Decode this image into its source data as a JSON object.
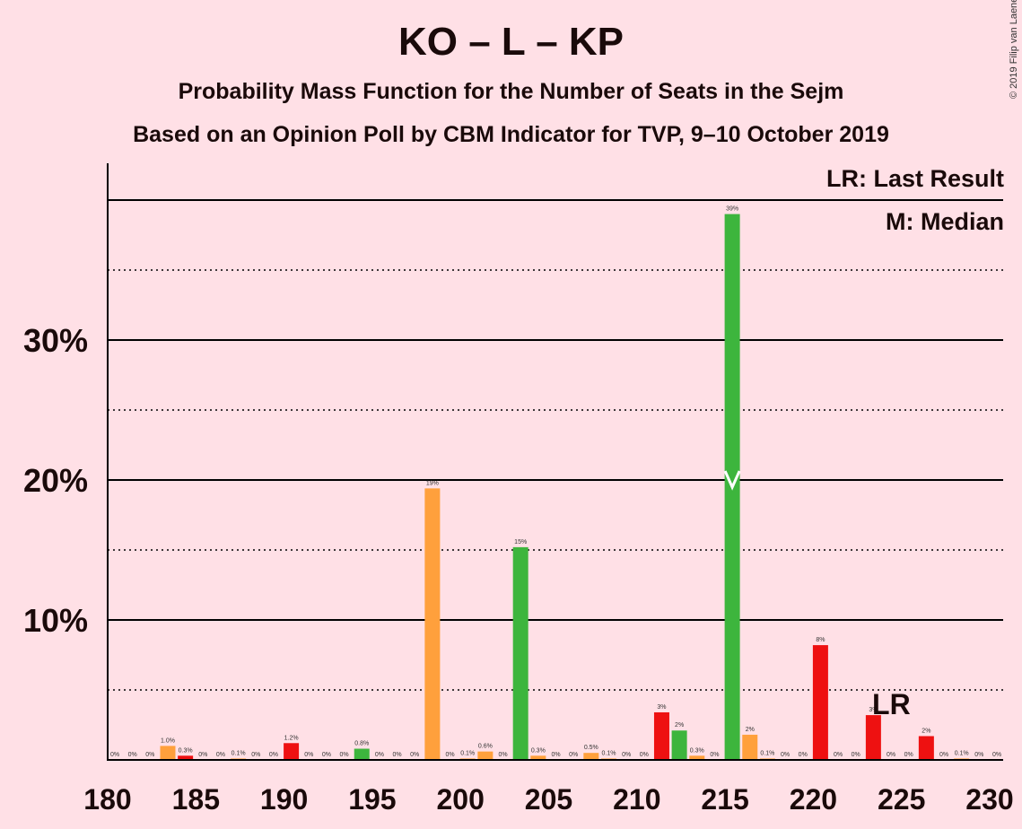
{
  "title": "KO – L – KP",
  "subtitle": "Probability Mass Function for the Number of Seats in the Sejm",
  "subtitle2": "Based on an Opinion Poll by CBM Indicator for TVP, 9–10 October 2019",
  "copyright": "© 2019 Filip van Laenen",
  "legend": {
    "last_result": "LR: Last Result",
    "median": "M: Median"
  },
  "markers": {
    "last_result_label": "LR",
    "last_result_seat": 223,
    "median_seat": 215
  },
  "colors": {
    "background": "#FFE0E6",
    "green": "#3DB53D",
    "orange": "#FFA03C",
    "red": "#EE1111",
    "axis": "#000000"
  },
  "chart_data": {
    "type": "bar",
    "title": "KO – L – KP",
    "xlabel": "",
    "ylabel": "",
    "xlim": [
      180,
      230
    ],
    "ylim": [
      0,
      42
    ],
    "y_ticks": [
      10,
      20,
      30
    ],
    "y_tick_labels": [
      "10%",
      "20%",
      "30%"
    ],
    "x_ticks": [
      180,
      185,
      190,
      195,
      200,
      205,
      210,
      215,
      220,
      225,
      230
    ],
    "x_tick_labels": [
      "180",
      "185",
      "190",
      "195",
      "200",
      "205",
      "210",
      "215",
      "220",
      "225",
      "230"
    ],
    "grid": "solid every 10%, dotted every 5%",
    "bars": [
      {
        "seat": 180,
        "value": 0,
        "label": "0%",
        "color": "orange"
      },
      {
        "seat": 181,
        "value": 0,
        "label": "0%",
        "color": "orange"
      },
      {
        "seat": 182,
        "value": 0,
        "label": "0%",
        "color": "orange"
      },
      {
        "seat": 183,
        "value": 1.0,
        "label": "1.0%",
        "color": "orange"
      },
      {
        "seat": 184,
        "value": 0.3,
        "label": "0.3%",
        "color": "red"
      },
      {
        "seat": 185,
        "value": 0,
        "label": "0%",
        "color": "orange"
      },
      {
        "seat": 186,
        "value": 0,
        "label": "0%",
        "color": "orange"
      },
      {
        "seat": 187,
        "value": 0.1,
        "label": "0.1%",
        "color": "orange"
      },
      {
        "seat": 188,
        "value": 0,
        "label": "0%",
        "color": "orange"
      },
      {
        "seat": 189,
        "value": 0,
        "label": "0%",
        "color": "orange"
      },
      {
        "seat": 190,
        "value": 1.2,
        "label": "1.2%",
        "color": "red"
      },
      {
        "seat": 191,
        "value": 0,
        "label": "0%",
        "color": "orange"
      },
      {
        "seat": 192,
        "value": 0,
        "label": "0%",
        "color": "orange"
      },
      {
        "seat": 193,
        "value": 0,
        "label": "0%",
        "color": "orange"
      },
      {
        "seat": 194,
        "value": 0.8,
        "label": "0.8%",
        "color": "green"
      },
      {
        "seat": 195,
        "value": 0,
        "label": "0%",
        "color": "orange"
      },
      {
        "seat": 196,
        "value": 0,
        "label": "0%",
        "color": "orange"
      },
      {
        "seat": 197,
        "value": 0,
        "label": "0%",
        "color": "orange"
      },
      {
        "seat": 198,
        "value": 19.4,
        "label": "19%",
        "color": "orange"
      },
      {
        "seat": 199,
        "value": 0,
        "label": "0%",
        "color": "orange"
      },
      {
        "seat": 200,
        "value": 0.1,
        "label": "0.1%",
        "color": "orange"
      },
      {
        "seat": 201,
        "value": 0.6,
        "label": "0.6%",
        "color": "orange"
      },
      {
        "seat": 202,
        "value": 0,
        "label": "0%",
        "color": "orange"
      },
      {
        "seat": 203,
        "value": 15.2,
        "label": "15%",
        "color": "green"
      },
      {
        "seat": 204,
        "value": 0.3,
        "label": "0.3%",
        "color": "orange"
      },
      {
        "seat": 205,
        "value": 0,
        "label": "0%",
        "color": "orange"
      },
      {
        "seat": 206,
        "value": 0,
        "label": "0%",
        "color": "orange"
      },
      {
        "seat": 207,
        "value": 0.5,
        "label": "0.5%",
        "color": "orange"
      },
      {
        "seat": 208,
        "value": 0.1,
        "label": "0.1%",
        "color": "orange"
      },
      {
        "seat": 209,
        "value": 0,
        "label": "0%",
        "color": "orange"
      },
      {
        "seat": 210,
        "value": 0,
        "label": "0%",
        "color": "orange"
      },
      {
        "seat": 211,
        "value": 3.4,
        "label": "3%",
        "color": "red"
      },
      {
        "seat": 212,
        "value": 2.1,
        "label": "2%",
        "color": "green"
      },
      {
        "seat": 213,
        "value": 0.3,
        "label": "0.3%",
        "color": "orange"
      },
      {
        "seat": 214,
        "value": 0,
        "label": "0%",
        "color": "orange"
      },
      {
        "seat": 215,
        "value": 39.0,
        "label": "39%",
        "color": "green"
      },
      {
        "seat": 216,
        "value": 1.8,
        "label": "2%",
        "color": "orange"
      },
      {
        "seat": 217,
        "value": 0.1,
        "label": "0.1%",
        "color": "orange"
      },
      {
        "seat": 218,
        "value": 0,
        "label": "0%",
        "color": "orange"
      },
      {
        "seat": 219,
        "value": 0,
        "label": "0%",
        "color": "orange"
      },
      {
        "seat": 220,
        "value": 8.2,
        "label": "8%",
        "color": "red"
      },
      {
        "seat": 221,
        "value": 0,
        "label": "0%",
        "color": "orange"
      },
      {
        "seat": 222,
        "value": 0,
        "label": "0%",
        "color": "orange"
      },
      {
        "seat": 223,
        "value": 3.2,
        "label": "3%",
        "color": "red"
      },
      {
        "seat": 224,
        "value": 0,
        "label": "0%",
        "color": "orange"
      },
      {
        "seat": 225,
        "value": 0,
        "label": "0%",
        "color": "orange"
      },
      {
        "seat": 226,
        "value": 1.7,
        "label": "2%",
        "color": "red"
      },
      {
        "seat": 227,
        "value": 0,
        "label": "0%",
        "color": "orange"
      },
      {
        "seat": 228,
        "value": 0.1,
        "label": "0.1%",
        "color": "orange"
      },
      {
        "seat": 229,
        "value": 0,
        "label": "0%",
        "color": "orange"
      },
      {
        "seat": 230,
        "value": 0,
        "label": "0%",
        "color": "orange"
      }
    ]
  }
}
